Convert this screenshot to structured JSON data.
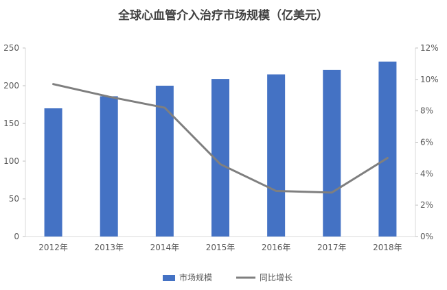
{
  "chart_data": {
    "type": "bar",
    "title": "全球心血管介入治疗市场规模（亿美元）",
    "categories": [
      "2012年",
      "2013年",
      "2014年",
      "2015年",
      "2016年",
      "2017年",
      "2018年"
    ],
    "series": [
      {
        "name": "市场规模",
        "type": "bar",
        "axis": "left",
        "color": "#4472C4",
        "values": [
          170,
          186,
          200,
          209,
          215,
          221,
          232
        ]
      },
      {
        "name": "同比增长",
        "type": "line",
        "axis": "right",
        "color": "#7F7F7F",
        "values": [
          9.7,
          8.9,
          8.2,
          4.6,
          2.9,
          2.8,
          5.0
        ]
      }
    ],
    "y_left": {
      "ylim": [
        0,
        250
      ],
      "ticks": [
        0,
        50,
        100,
        150,
        200,
        250
      ],
      "tick_labels": [
        "0",
        "50",
        "100",
        "150",
        "200",
        "250"
      ]
    },
    "y_right": {
      "ylim": [
        0,
        12
      ],
      "ticks": [
        0,
        2,
        4,
        6,
        8,
        10,
        12
      ],
      "tick_labels": [
        "0%",
        "2%",
        "4%",
        "6%",
        "8%",
        "10%",
        "12%"
      ]
    },
    "grid": false,
    "legend_position": "bottom-center"
  }
}
